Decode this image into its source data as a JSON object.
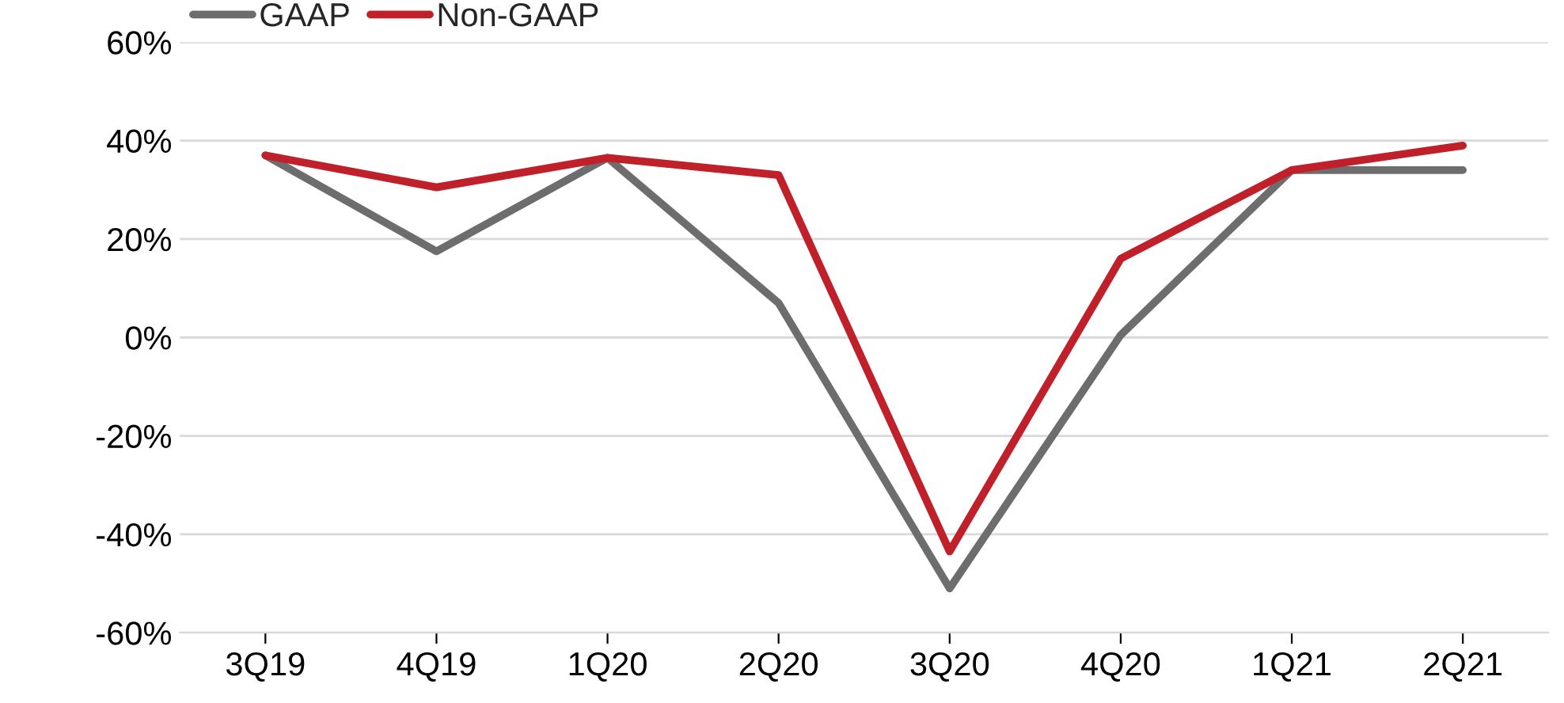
{
  "chart_data": {
    "type": "line",
    "categories": [
      "3Q19",
      "4Q19",
      "1Q20",
      "2Q20",
      "3Q20",
      "4Q20",
      "1Q21",
      "2Q21"
    ],
    "series": [
      {
        "name": "GAAP",
        "color": "#6d6d6d",
        "values": [
          37,
          17.5,
          36.5,
          7,
          -51,
          0.5,
          34,
          34
        ]
      },
      {
        "name": "Non-GAAP",
        "color": "#c0202a",
        "values": [
          37,
          30.5,
          36.5,
          33,
          -43.5,
          16,
          34,
          39
        ]
      }
    ],
    "ylim": [
      -60,
      60
    ],
    "yticks": [
      {
        "value": -60,
        "label": "-60%"
      },
      {
        "value": -40,
        "label": "-40%"
      },
      {
        "value": -20,
        "label": "-20%"
      },
      {
        "value": 0,
        "label": "0%"
      },
      {
        "value": 20,
        "label": "20%"
      },
      {
        "value": 40,
        "label": "40%"
      },
      {
        "value": 60,
        "label": "60%"
      }
    ],
    "grid": "y",
    "legend": "top left",
    "marker": "none",
    "line_style": "solid"
  }
}
